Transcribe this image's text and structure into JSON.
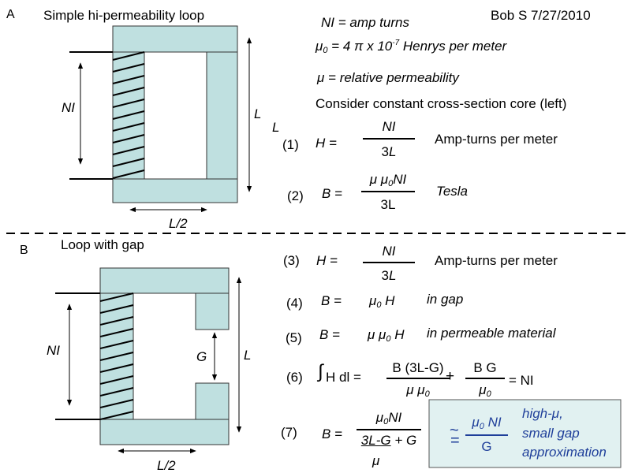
{
  "header": {
    "section_a_letter": "A",
    "section_a_title": "Simple hi-permeability loop",
    "author": "Bob S 7/27/2010",
    "section_b_letter": "B",
    "section_b_title": "Loop with gap"
  },
  "definitions": {
    "ni_lhs": "NI",
    "ni_rhs": "= amp turns",
    "mu0_lhs": "μ",
    "mu0_sub": "0",
    "mu0_rhs": " = 4 π x 10",
    "mu0_exp": "-7",
    "mu0_unit": " Henrys per meter",
    "mu_line": "μ = relative permeability",
    "consider": "Consider constant cross-section core (left)"
  },
  "diagram_a": {
    "coil_label": "NI",
    "length_label": "L",
    "stray_label": "L",
    "width_label": "L/2"
  },
  "diagram_b": {
    "coil_label": "NI",
    "length_label": "L",
    "gap_label": "G",
    "width_label": "L/2"
  },
  "equations": {
    "eq1": {
      "num": "(1)",
      "lhs": "H =",
      "frac_num": "NI",
      "frac_den_a": "3",
      "frac_den_b": "L",
      "note": "Amp-turns per meter"
    },
    "eq2": {
      "num": "(2)",
      "lhs": "B =",
      "frac_num_a": "μ μ",
      "frac_num_sub": "0",
      "frac_num_b": "NI",
      "frac_den": "3L",
      "note": "Tesla"
    },
    "eq3": {
      "num": "(3)",
      "lhs": "H =",
      "frac_num": "NI",
      "frac_den_a": "3",
      "frac_den_b": "L",
      "note": "Amp-turns per meter"
    },
    "eq4": {
      "num": "(4)",
      "lhs": "B =",
      "rhs_a": "μ",
      "rhs_sub": "0",
      "rhs_b": " H",
      "note": "in gap"
    },
    "eq5": {
      "num": "(5)",
      "lhs": "B =",
      "rhs_a": "μ μ",
      "rhs_sub": "0",
      "rhs_b": " H",
      "note": "in permeable material"
    },
    "eq6": {
      "num": "(6)",
      "integral": "∫",
      "integrand": " H dl =",
      "f1_num": "B (3L-G)",
      "f1_den_a": "μ  μ",
      "f1_den_sub": "0",
      "plus": "+",
      "f2_num": "B G",
      "f2_den_a": "μ",
      "f2_den_sub": "0",
      "result": "= NI"
    },
    "eq7": {
      "num": "(7)",
      "lhs": "B =",
      "num_a": "μ",
      "num_sub": "0",
      "num_b": "NI",
      "den_ul": "3L-G",
      "den_rest": " + G",
      "den_mu": "μ"
    }
  },
  "approx_box": {
    "tilde": "~",
    "equals": "=",
    "num_a": "μ",
    "num_sub": "0",
    "num_b": " NI",
    "den": "G",
    "line1": "high-μ,",
    "line2": "small gap",
    "line3": "approximation"
  },
  "colors": {
    "core": "#bfe0e0",
    "box_fill": "#e1f1f1",
    "box_text": "#1f3f9a"
  }
}
